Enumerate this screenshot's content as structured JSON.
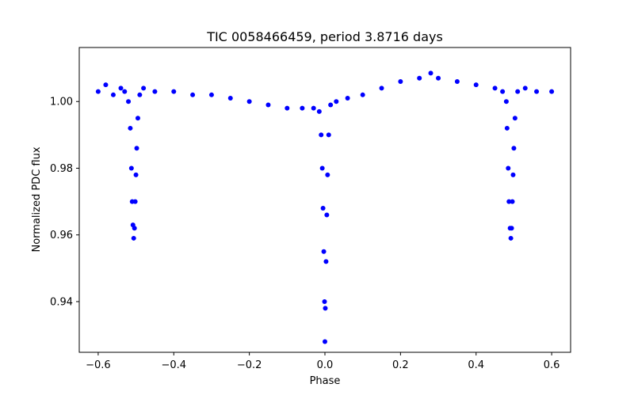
{
  "chart_data": {
    "type": "scatter",
    "title": "TIC 0058466459, period 3.8716 days",
    "xlabel": "Phase",
    "ylabel": "Normalized PDC flux",
    "xlim": [
      -0.6501,
      0.6501
    ],
    "ylim": [
      0.9248,
      1.0162
    ],
    "xticks": [
      -0.6,
      -0.4,
      -0.2,
      0.0,
      0.2,
      0.4,
      0.6
    ],
    "xtick_labels": [
      "−0.6",
      "−0.4",
      "−0.2",
      "0.0",
      "0.2",
      "0.4",
      "0.6"
    ],
    "yticks": [
      0.94,
      0.96,
      0.98,
      1.0
    ],
    "ytick_labels": [
      "0.94",
      "0.96",
      "0.98",
      "1.00"
    ],
    "grid": false,
    "legend": "none",
    "marker_color": "#0000ff",
    "series": [
      {
        "points": [
          [
            -0.6,
            1.003
          ],
          [
            -0.58,
            1.005
          ],
          [
            -0.56,
            1.002
          ],
          [
            -0.54,
            1.004
          ],
          [
            -0.53,
            1.003
          ],
          [
            -0.52,
            1.0
          ],
          [
            -0.515,
            0.992
          ],
          [
            -0.512,
            0.98
          ],
          [
            -0.51,
            0.97
          ],
          [
            -0.508,
            0.963
          ],
          [
            -0.506,
            0.959
          ],
          [
            -0.504,
            0.962
          ],
          [
            -0.502,
            0.97
          ],
          [
            -0.5,
            0.978
          ],
          [
            -0.498,
            0.986
          ],
          [
            -0.495,
            0.995
          ],
          [
            -0.49,
            1.002
          ],
          [
            -0.48,
            1.004
          ],
          [
            -0.45,
            1.003
          ],
          [
            -0.4,
            1.003
          ],
          [
            -0.35,
            1.002
          ],
          [
            -0.3,
            1.002
          ],
          [
            -0.25,
            1.001
          ],
          [
            -0.2,
            1.0
          ],
          [
            -0.15,
            0.999
          ],
          [
            -0.1,
            0.998
          ],
          [
            -0.06,
            0.998
          ],
          [
            -0.03,
            0.998
          ],
          [
            -0.015,
            0.997
          ],
          [
            -0.01,
            0.99
          ],
          [
            -0.007,
            0.98
          ],
          [
            -0.005,
            0.968
          ],
          [
            -0.003,
            0.955
          ],
          [
            -0.001,
            0.94
          ],
          [
            0.0,
            0.928
          ],
          [
            0.001,
            0.938
          ],
          [
            0.003,
            0.952
          ],
          [
            0.005,
            0.966
          ],
          [
            0.007,
            0.978
          ],
          [
            0.01,
            0.99
          ],
          [
            0.015,
            0.999
          ],
          [
            0.03,
            1.0
          ],
          [
            0.06,
            1.001
          ],
          [
            0.1,
            1.002
          ],
          [
            0.15,
            1.004
          ],
          [
            0.2,
            1.006
          ],
          [
            0.25,
            1.007
          ],
          [
            0.28,
            1.0085
          ],
          [
            0.3,
            1.007
          ],
          [
            0.35,
            1.006
          ],
          [
            0.4,
            1.005
          ],
          [
            0.45,
            1.004
          ],
          [
            0.47,
            1.003
          ],
          [
            0.48,
            1.0
          ],
          [
            0.482,
            0.992
          ],
          [
            0.485,
            0.98
          ],
          [
            0.487,
            0.97
          ],
          [
            0.49,
            0.962
          ],
          [
            0.492,
            0.959
          ],
          [
            0.494,
            0.962
          ],
          [
            0.496,
            0.97
          ],
          [
            0.498,
            0.978
          ],
          [
            0.5,
            0.986
          ],
          [
            0.503,
            0.995
          ],
          [
            0.51,
            1.003
          ],
          [
            0.53,
            1.004
          ],
          [
            0.56,
            1.003
          ],
          [
            0.6,
            1.003
          ]
        ]
      }
    ]
  }
}
